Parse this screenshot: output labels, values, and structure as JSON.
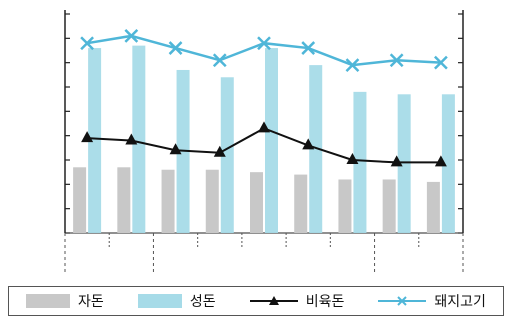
{
  "chart_data": {
    "type": "bar",
    "categories": [
      "",
      "",
      "",
      "",
      "",
      "",
      "",
      "",
      ""
    ],
    "series": [
      {
        "name": "자돈",
        "kind": "bar",
        "color": "#c8c8c8",
        "values": [
          2.7,
          2.7,
          2.6,
          2.6,
          2.5,
          2.4,
          2.2,
          2.2,
          2.1
        ]
      },
      {
        "name": "성돈",
        "kind": "bar",
        "color": "#a6dbe8",
        "values": [
          7.6,
          7.7,
          6.7,
          6.4,
          7.6,
          6.9,
          5.8,
          5.7,
          5.7
        ]
      },
      {
        "name": "비육돈",
        "kind": "line",
        "color": "#111111",
        "marker": "triangle",
        "values": [
          3.9,
          3.8,
          3.4,
          3.3,
          4.3,
          3.6,
          3.0,
          2.9,
          2.9
        ]
      },
      {
        "name": "돼지고기",
        "kind": "line",
        "color": "#4fb6d8",
        "marker": "x",
        "values": [
          7.8,
          8.1,
          7.6,
          7.1,
          7.8,
          7.6,
          6.9,
          7.1,
          7.0
        ]
      }
    ],
    "ylim": [
      0,
      9
    ],
    "title": "",
    "xlabel": "",
    "ylabel": "",
    "grid": false,
    "legend_placement": "bottom"
  },
  "legend": {
    "items": [
      "자돈",
      "성돈",
      "비육돈",
      "돼지고기"
    ]
  }
}
